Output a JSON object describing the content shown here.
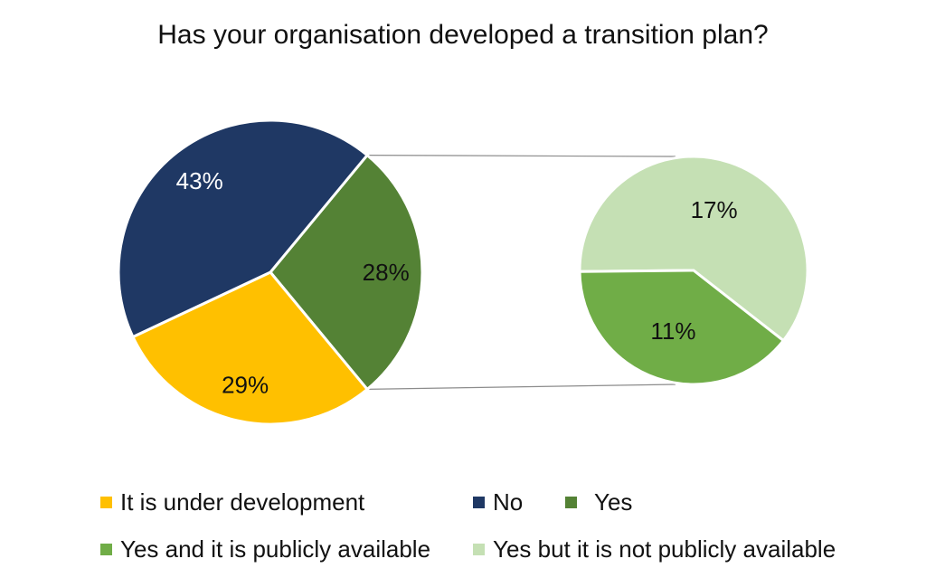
{
  "chart_data": {
    "type": "pie",
    "title": "Has your organisation developed a transition plan?",
    "main_pie": {
      "slices": [
        {
          "name": "No",
          "value": 43,
          "label": "43%",
          "color": "#1f3864",
          "label_color": "#ffffff"
        },
        {
          "name": "Yes",
          "value": 28,
          "label": "28%",
          "color": "#548235",
          "label_color": "#111111"
        },
        {
          "name": "It is under development",
          "value": 29,
          "label": "29%",
          "color": "#ffc000",
          "label_color": "#111111"
        }
      ]
    },
    "detail_pie": {
      "breakdown_of": "Yes",
      "slices": [
        {
          "name": "Yes but it is not publicly available",
          "value": 17,
          "label": "17%",
          "color": "#c5e0b4",
          "label_color": "#111111"
        },
        {
          "name": "Yes and it is publicly available",
          "value": 11,
          "label": "11%",
          "color": "#70ad47",
          "label_color": "#111111"
        }
      ]
    },
    "legend": [
      {
        "label": "It is under development",
        "color": "#ffc000"
      },
      {
        "label": "No",
        "color": "#1f3864"
      },
      {
        "label": "Yes",
        "color": "#548235"
      },
      {
        "label": "Yes and it is publicly available",
        "color": "#70ad47"
      },
      {
        "label": "Yes but it is not publicly available",
        "color": "#c5e0b4"
      }
    ],
    "legend_position": "bottom"
  }
}
